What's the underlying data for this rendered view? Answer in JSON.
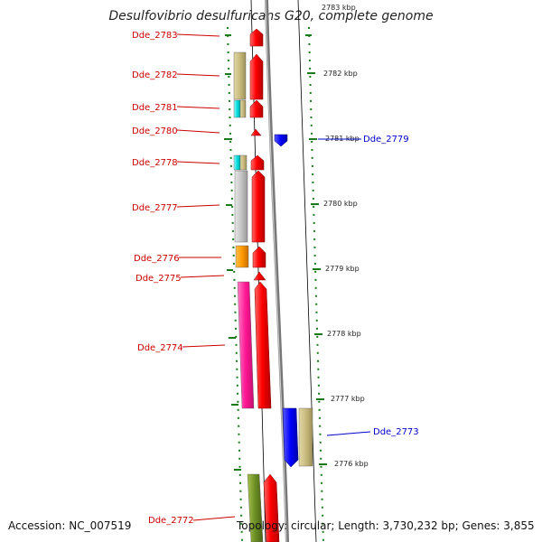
{
  "title": "Desulfovibrio desulfuricans G20, complete genome",
  "footer": {
    "accession": "Accession: NC_007519",
    "topology": "Topology: circular; Length: 3,730,232 bp; Genes: 3,855"
  },
  "colors": {
    "forward_label": "#cc0000",
    "reverse_label": "#0000cc",
    "strand_red": "#ff0000",
    "tick_green": "#1a7a1a",
    "backbone": "#888888"
  },
  "scale_ticks": [
    "2783 kbp",
    "2782 kbp",
    "2781 kbp",
    "2780 kbp",
    "2779 kbp",
    "2778 kbp",
    "2777 kbp",
    "2776 kbp"
  ],
  "gene_labels": {
    "forward": [
      "Dde_2783",
      "Dde_2782",
      "Dde_2781",
      "Dde_2780",
      "Dde_2778",
      "Dde_2777",
      "Dde_2776",
      "Dde_2775",
      "Dde_2774",
      "Dde_2772"
    ],
    "reverse": [
      "Dde_2779",
      "Dde_2773"
    ]
  }
}
